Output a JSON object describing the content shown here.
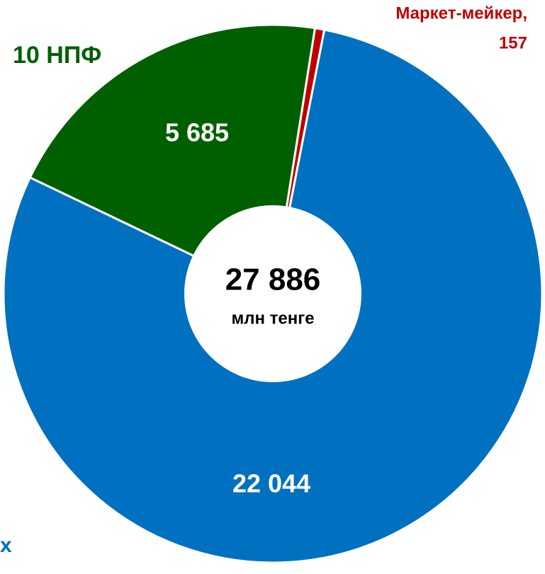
{
  "chart_data": {
    "type": "donut",
    "categories": [
      "Маркет-мейкер,",
      "х",
      "10 НПФ"
    ],
    "values": [
      157,
      22044,
      5685
    ],
    "value_labels": [
      "157",
      "22 044",
      "5 685"
    ],
    "colors": [
      "#c00000",
      "#0070c0",
      "#006000"
    ],
    "center_label": "27 886",
    "center_sublabel": "млн тенге"
  }
}
